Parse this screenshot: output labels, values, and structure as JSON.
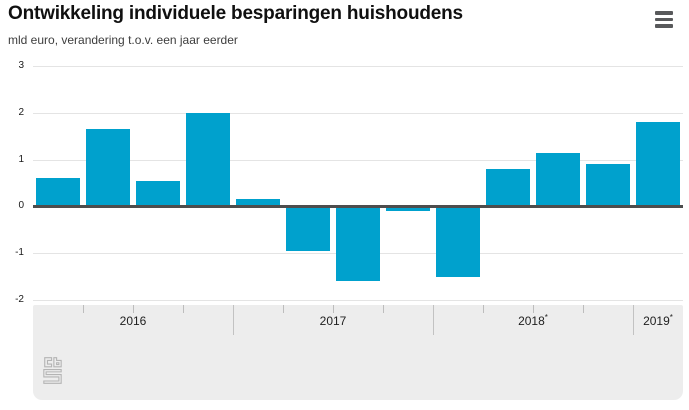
{
  "header": {
    "title": "Ontwikkeling individuele besparingen huishoudens",
    "subtitle": "mld euro, verandering t.o.v. een jaar eerder",
    "menu_icon": "hamburger-menu-icon"
  },
  "chart_data": {
    "type": "bar",
    "title": "Ontwikkeling individuele besparingen huishoudens",
    "subtitle": "mld euro, verandering t.o.v. een jaar eerder",
    "xlabel": "",
    "ylabel": "mld euro",
    "ylim": [
      -2,
      3
    ],
    "yticks": [
      3,
      2,
      1,
      0,
      -1,
      -2
    ],
    "grid": true,
    "legend": false,
    "bar_color": "#00a1cd",
    "x_groups": [
      {
        "label": "2016",
        "mark": "",
        "quarters": 4
      },
      {
        "label": "2017",
        "mark": "",
        "quarters": 4
      },
      {
        "label": "2018",
        "mark": "*",
        "quarters": 4
      },
      {
        "label": "2019",
        "mark": "*",
        "quarters": 1
      }
    ],
    "values": [
      0.6,
      1.65,
      0.55,
      2.0,
      0.15,
      -0.95,
      -1.6,
      -0.1,
      -1.5,
      0.8,
      1.15,
      0.9,
      1.8
    ]
  },
  "footer": {
    "logo": "cbs-logo"
  },
  "colors": {
    "bar": "#00a1cd",
    "zero_line": "#4d4d4d",
    "gridline": "#e4e4e4",
    "band_background": "#ededed",
    "menu_icon": "#58595b",
    "logo_outline": "#b4b4b4"
  }
}
